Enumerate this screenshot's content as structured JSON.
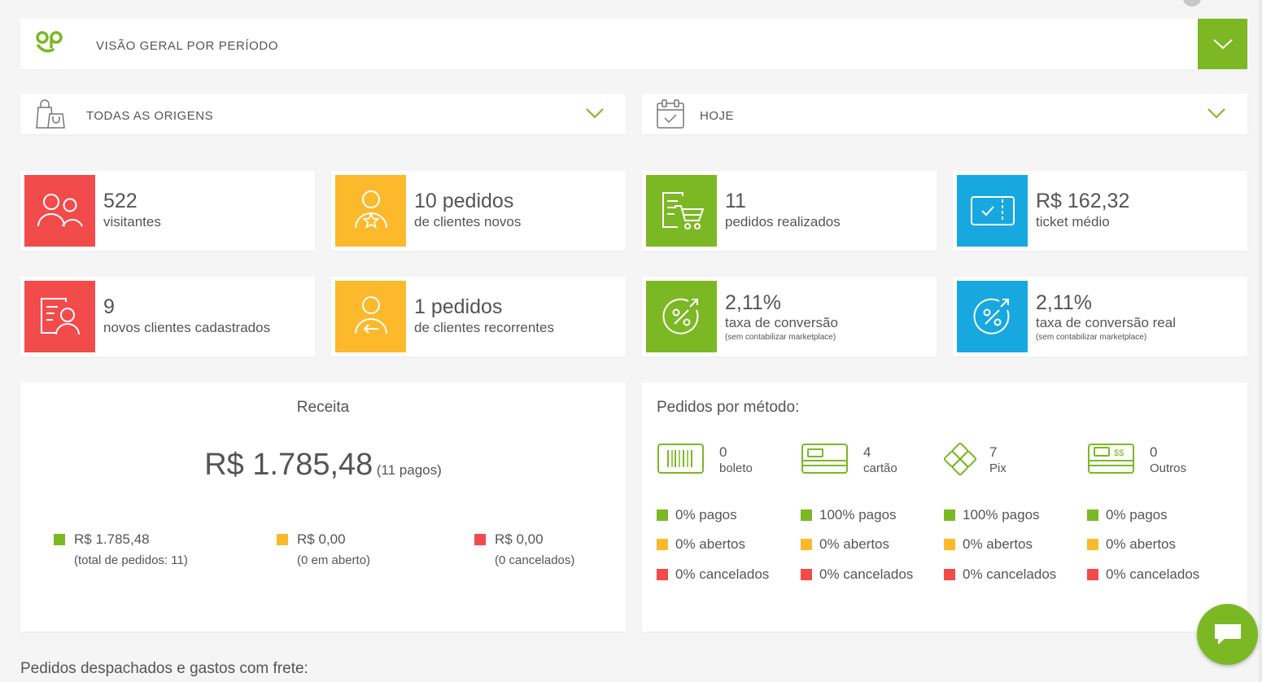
{
  "header": {
    "title": "VISÃO GERAL POR PERÍODO",
    "logo_icon": "op-logo-icon",
    "toggle_icon": "chevron-down-icon"
  },
  "filters": {
    "origin": {
      "label": "TODAS AS ORIGENS",
      "icon": "shopping-bags-icon"
    },
    "period": {
      "label": "HOJE",
      "icon": "calendar-check-icon"
    }
  },
  "cards": [
    {
      "value": "522",
      "label": "visitantes",
      "color": "#f24b4b",
      "icon": "users-icon"
    },
    {
      "value": "10 pedidos",
      "label": "de clientes novos",
      "color": "#fbb92b",
      "icon": "user-star-icon"
    },
    {
      "value": "11",
      "label": "pedidos realizados",
      "color": "#7cb824",
      "icon": "cart-list-icon"
    },
    {
      "value": "R$ 162,32",
      "label": "ticket médio",
      "color": "#17a8df",
      "icon": "ticket-check-icon"
    },
    {
      "value": "9",
      "label": "novos clientes cadastrados",
      "color": "#f24b4b",
      "icon": "user-registration-icon"
    },
    {
      "value": "1 pedidos",
      "label": "de clientes recorrentes",
      "color": "#fbb92b",
      "icon": "user-return-icon"
    },
    {
      "value": "2,11%",
      "label": "taxa de conversão",
      "note": "(sem contabilizar marketplace)",
      "color": "#7cb824",
      "icon": "percent-conversion-icon"
    },
    {
      "value": "2,11%",
      "label": "taxa de conversão real",
      "note": "(sem contabilizar marketplace)",
      "color": "#17a8df",
      "icon": "percent-conversion-icon"
    }
  ],
  "receita": {
    "title": "Receita",
    "total": "R$ 1.785,48",
    "paid_count": "(11 pagos)",
    "legend": [
      {
        "value": "R$ 1.785,48",
        "caption": "(total de pedidos: 11)",
        "color": "#7cb824"
      },
      {
        "value": "R$ 0,00",
        "caption": "(0 em aberto)",
        "color": "#fbb92b"
      },
      {
        "value": "R$ 0,00",
        "caption": "(0 cancelados)",
        "color": "#f24b4b"
      }
    ]
  },
  "metodos": {
    "title": "Pedidos por método:",
    "items": [
      {
        "count": "0",
        "label": "boleto",
        "icon": "barcode-icon",
        "pagos": "0% pagos",
        "abertos": "0% abertos",
        "cancelados": "0% cancelados"
      },
      {
        "count": "4",
        "label": "cartão",
        "icon": "credit-card-icon",
        "pagos": "100% pagos",
        "abertos": "0% abertos",
        "cancelados": "0% cancelados"
      },
      {
        "count": "7",
        "label": "Pix",
        "icon": "pix-icon",
        "pagos": "100% pagos",
        "abertos": "0% abertos",
        "cancelados": "0% cancelados"
      },
      {
        "count": "0",
        "label": "Outros",
        "icon": "money-card-icon",
        "icon_text": "$$",
        "pagos": "0% pagos",
        "abertos": "0% abertos",
        "cancelados": "0% cancelados"
      }
    ],
    "colors": {
      "pagos": "#7cb824",
      "abertos": "#fbb92b",
      "cancelados": "#f24b4b"
    }
  },
  "dispatch": {
    "title": "Pedidos despachados e gastos com frete:"
  },
  "chat": {
    "icon": "chat-icon"
  }
}
